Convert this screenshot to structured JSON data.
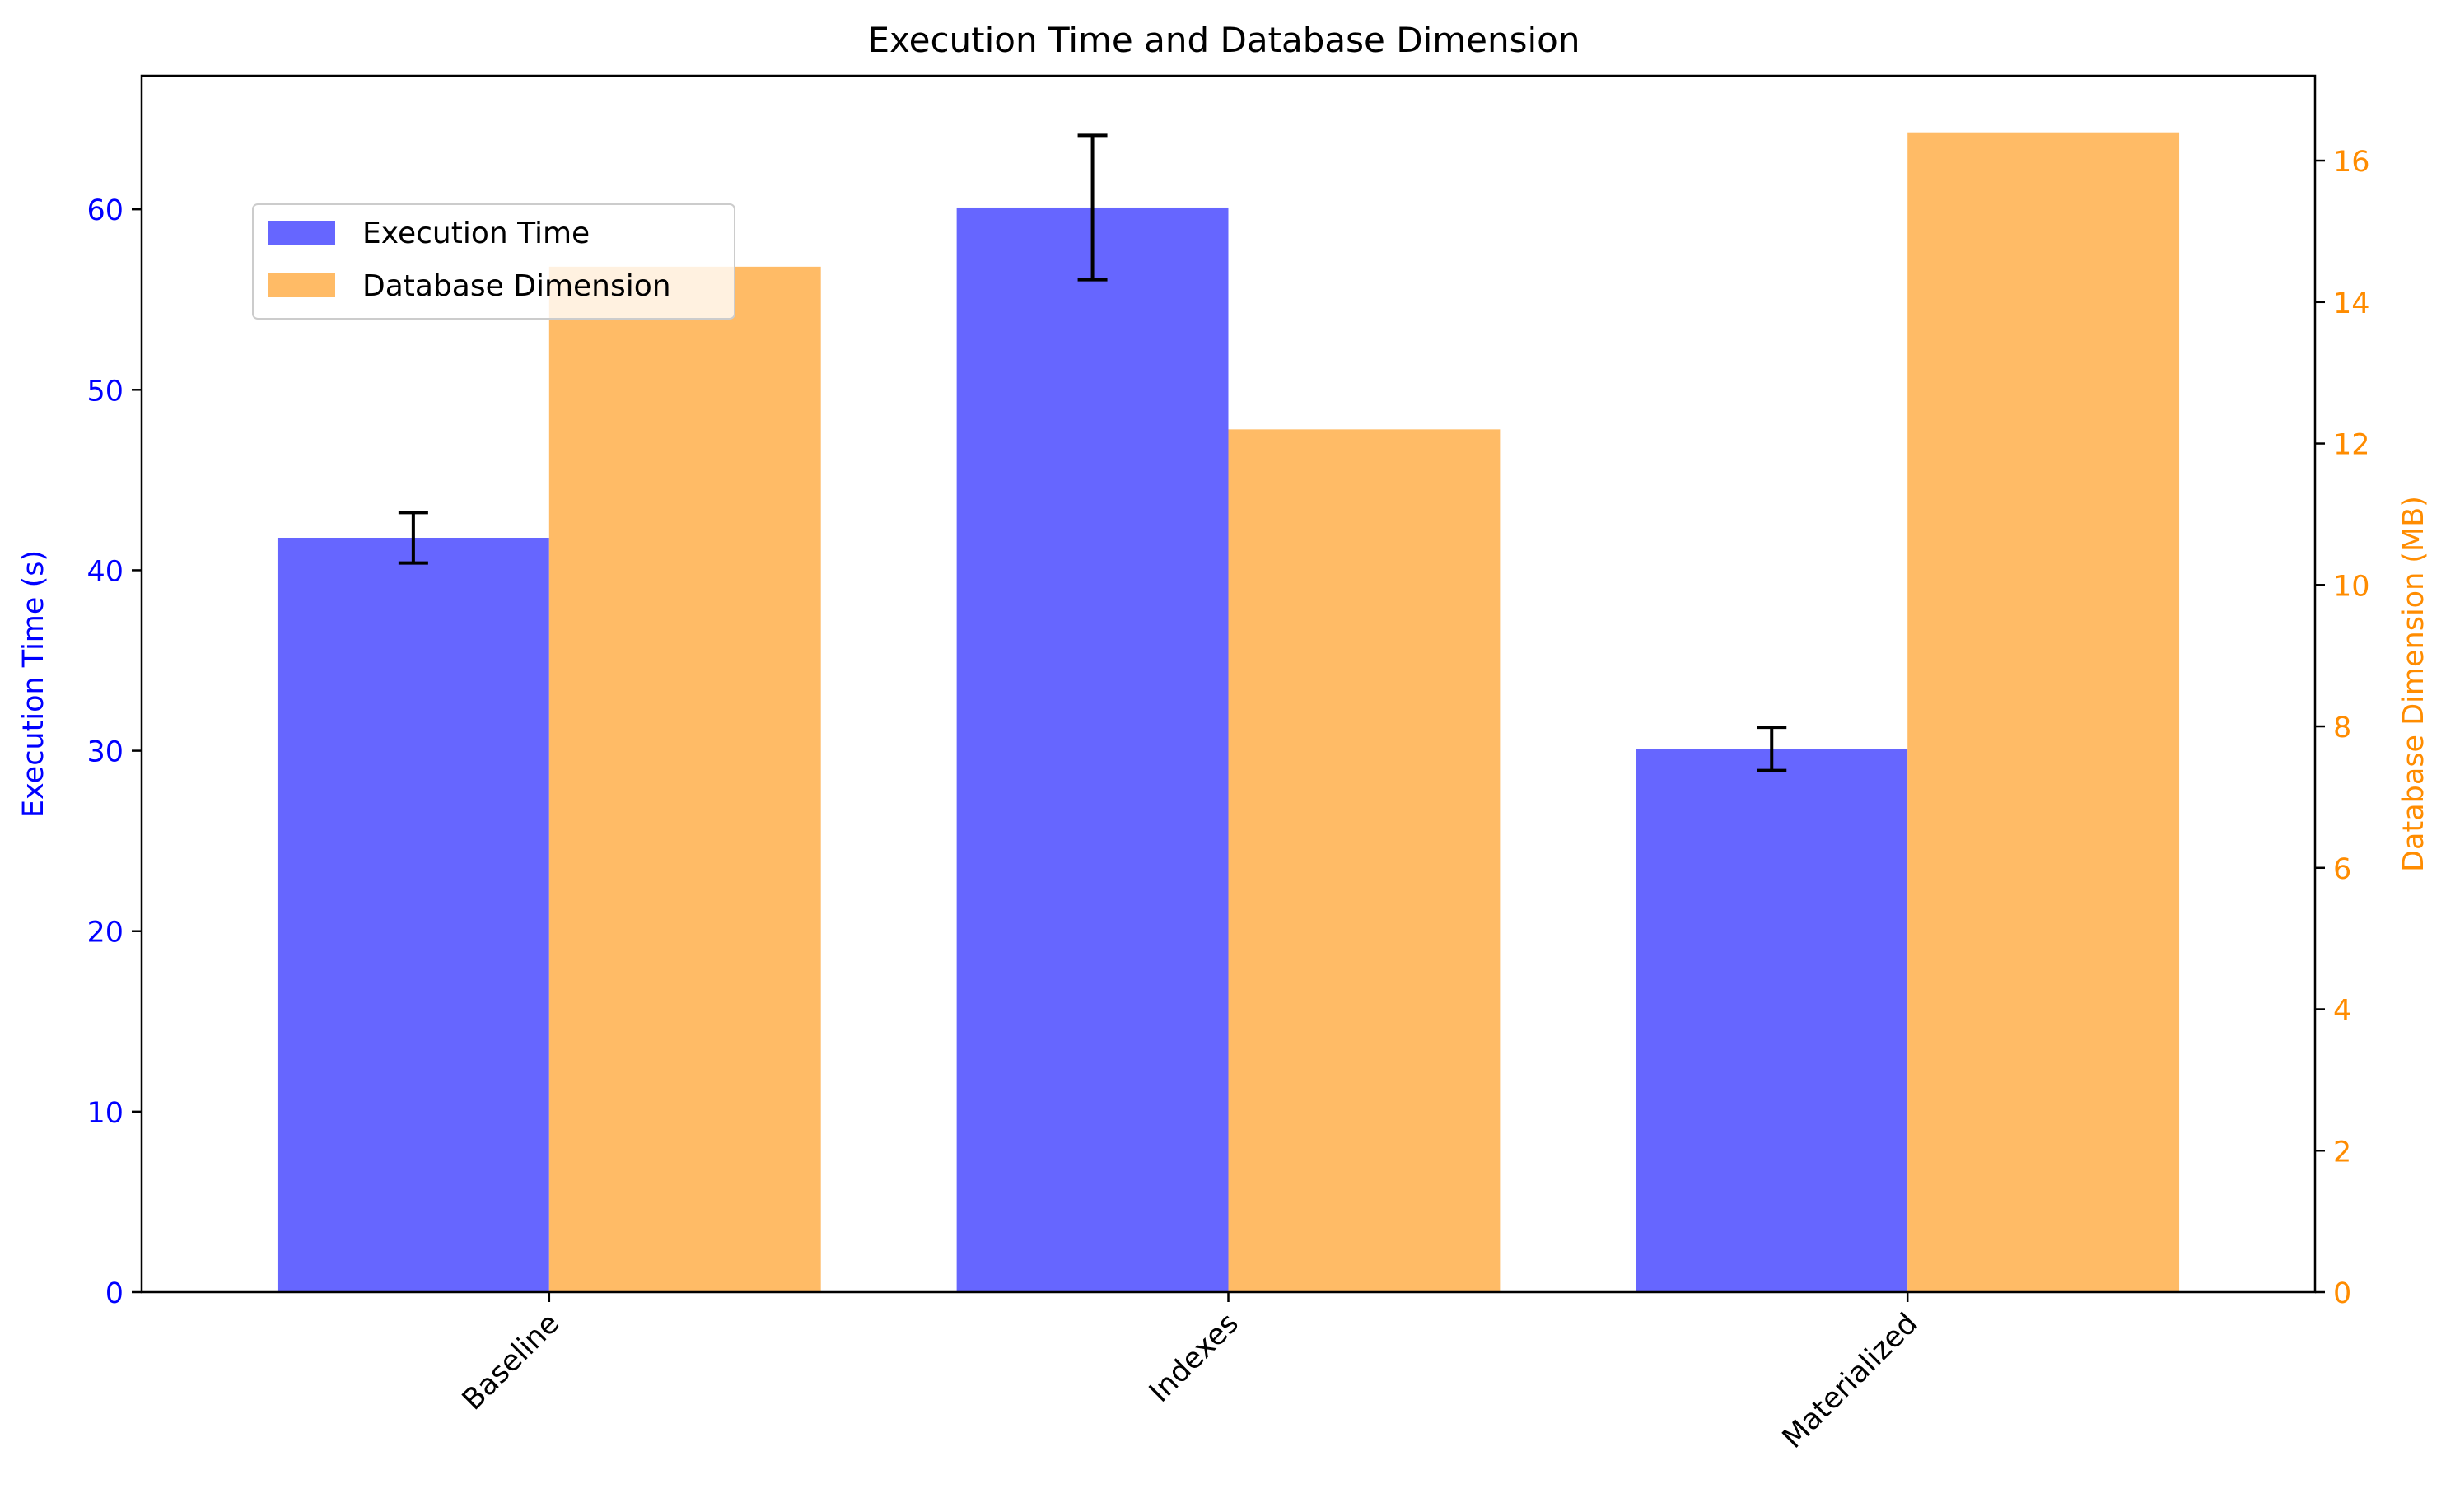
{
  "chart_data": {
    "type": "bar",
    "title": "Execution Time and Database Dimension",
    "categories": [
      "Baseline",
      "Indexes",
      "Materialized"
    ],
    "series": [
      {
        "name": "Execution Time",
        "axis": "left",
        "color": "#6666ff",
        "values": [
          41.8,
          60.1,
          30.1
        ],
        "error": [
          1.4,
          4.0,
          1.2
        ]
      },
      {
        "name": "Database Dimension",
        "axis": "right",
        "color": "#ffbb66",
        "values": [
          14.5,
          12.2,
          16.4
        ]
      }
    ],
    "y_left": {
      "label": "Execution Time (s)",
      "color": "#0000ff",
      "ylim": [
        0,
        67.4
      ],
      "ticks": [
        0,
        10,
        20,
        30,
        40,
        50,
        60
      ]
    },
    "y_right": {
      "label": "Database Dimension (MB)",
      "color": "#ff8c00",
      "ylim": [
        0,
        17.2
      ],
      "ticks": [
        0,
        2,
        4,
        6,
        8,
        10,
        12,
        14,
        16
      ]
    },
    "legend": "upper-left",
    "grid": false,
    "xtick_rotation": 45
  }
}
